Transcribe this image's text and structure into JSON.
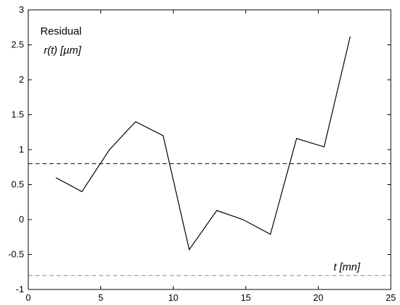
{
  "chart_data": {
    "type": "line",
    "annotations": {
      "title_line1": "Residual",
      "title_line2": "r(t) [µm]",
      "xlabel": "t [mn]"
    },
    "xlim": [
      0,
      25
    ],
    "ylim": [
      -1,
      3
    ],
    "xticks": [
      0,
      5,
      10,
      15,
      20,
      25
    ],
    "yticks": [
      -1,
      -0.5,
      0,
      0.5,
      1,
      1.5,
      2,
      2.5,
      3
    ],
    "ytick_labels": [
      "-1",
      "-0.5",
      "0",
      "0.5",
      "1",
      "1.5",
      "2",
      "2.5",
      "3"
    ],
    "xtick_labels": [
      "0",
      "5",
      "10",
      "15",
      "20",
      "25"
    ],
    "grid": false,
    "series": [
      {
        "x": [
          1.9,
          3.7,
          5.6,
          7.4,
          9.3,
          11.1,
          13.0,
          14.8,
          16.7,
          18.5,
          20.4,
          22.2
        ],
        "y": [
          0.6,
          0.4,
          1.0,
          1.4,
          1.2,
          -0.43,
          0.13,
          0.0,
          -0.21,
          1.16,
          1.04,
          2.62
        ],
        "color": "#000000",
        "style": "solid"
      }
    ],
    "reference_lines": [
      {
        "y": 0.8,
        "color": "#000000",
        "style": "dashed"
      },
      {
        "y": -0.8,
        "color": "#888888",
        "style": "dashed"
      }
    ]
  }
}
